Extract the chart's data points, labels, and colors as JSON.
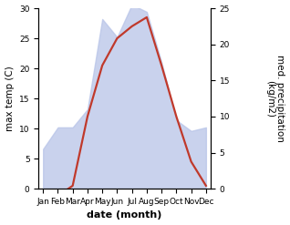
{
  "months": [
    "Jan",
    "Feb",
    "Mar",
    "Apr",
    "May",
    "Jun",
    "Jul",
    "Aug",
    "Sep",
    "Oct",
    "Nov",
    "Dec"
  ],
  "temperature": [
    -0.5,
    -1.2,
    0.5,
    12.0,
    20.5,
    25.0,
    27.0,
    28.5,
    20.5,
    12.0,
    4.5,
    0.5
  ],
  "precipitation": [
    5.5,
    8.5,
    8.5,
    11.0,
    23.5,
    21.0,
    25.5,
    24.5,
    17.5,
    9.5,
    8.0,
    8.5
  ],
  "temp_color": "#c0392b",
  "precip_fill_color": "#b8c4e8",
  "left_ylabel": "max temp (C)",
  "right_ylabel": "med. precipitation\n(kg/m2)",
  "xlabel": "date (month)",
  "left_ylim": [
    0,
    30
  ],
  "right_ylim": [
    0,
    25
  ],
  "bg_color": "#ffffff",
  "label_fontsize": 7.5,
  "tick_fontsize": 6.5,
  "xlabel_fontsize": 8
}
